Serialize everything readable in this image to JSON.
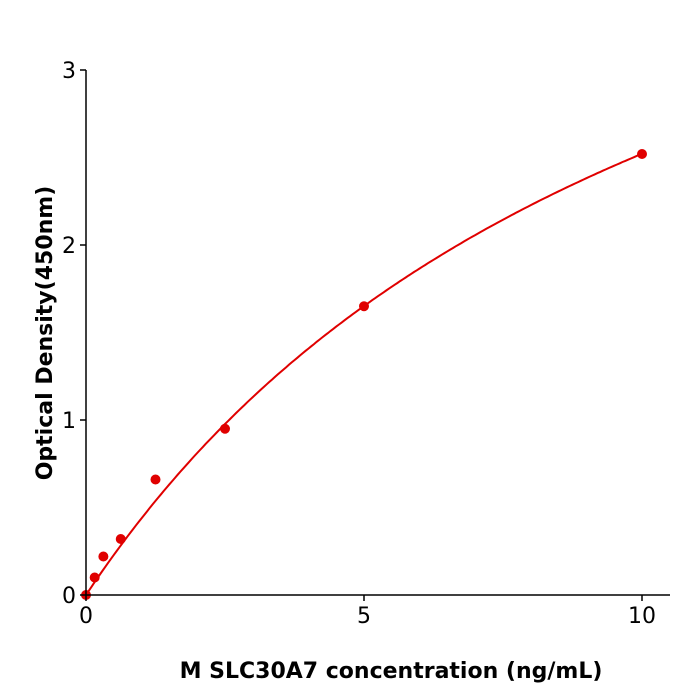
{
  "chart_data": {
    "type": "scatter",
    "title": "",
    "xlabel": "M  SLC30A7 concentration (ng/mL)",
    "ylabel": "Optical Density(450nm)",
    "xlim": [
      0,
      10.5
    ],
    "ylim": [
      0,
      3
    ],
    "xticks": [
      "0",
      "5",
      "10"
    ],
    "yticks": [
      "0",
      "1",
      "2",
      "3"
    ],
    "grid": false,
    "series": [
      {
        "x": [
          0,
          0.156,
          0.3125,
          0.625,
          1.25,
          2.5,
          5,
          10
        ],
        "y": [
          0.0,
          0.1,
          0.22,
          0.32,
          0.66,
          0.95,
          1.65,
          2.52
        ],
        "color": "#e00000",
        "fit_curve": true
      }
    ]
  }
}
